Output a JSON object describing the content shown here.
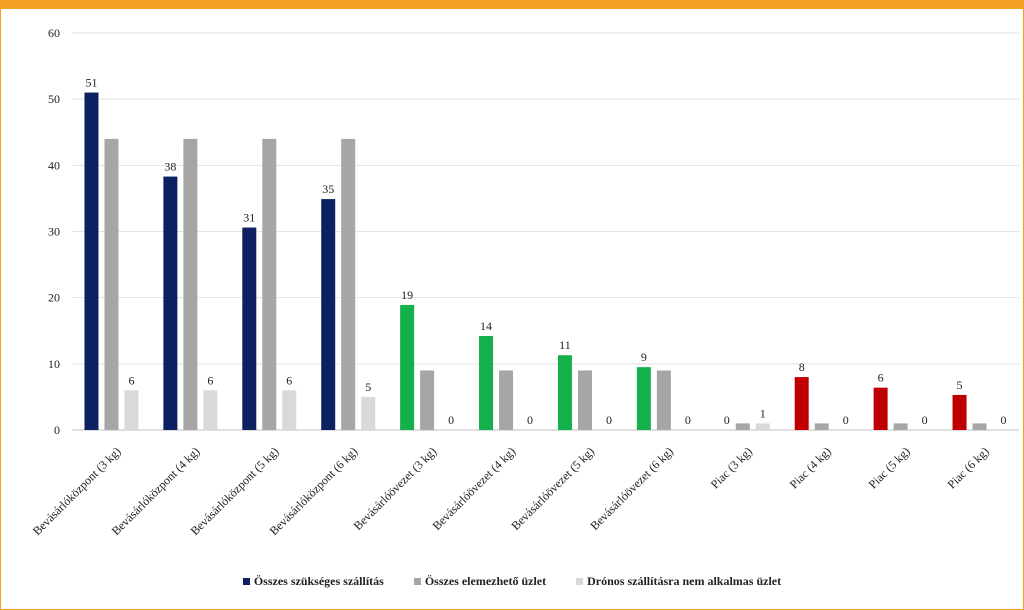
{
  "chart_data": {
    "type": "bar",
    "ylim": [
      0,
      60
    ],
    "yticks": [
      0,
      10,
      20,
      30,
      40,
      50,
      60
    ],
    "grid": true,
    "legend_position": "bottom",
    "categories": [
      "Bevásárlóközpont (3 kg)",
      "Bevásárlóközpont (4 kg)",
      "Bevásárlóközpont (5 kg)",
      "Bevásárlóközpont (6 kg)",
      "Bevásárlóövezet (3 kg)",
      "Bevásárlóövezet (4 kg)",
      "Bevásárlóövezet (5 kg)",
      "Bevásárlóövezet (6 kg)",
      "Piac (3 kg)",
      "Piac (4 kg)",
      "Piac (5 kg)",
      "Piac (6 kg)"
    ],
    "group_colors": [
      "#0d2160",
      "#0d2160",
      "#0d2160",
      "#0d2160",
      "#14b04b",
      "#14b04b",
      "#14b04b",
      "#14b04b",
      "#c00000",
      "#c00000",
      "#c00000",
      "#c00000"
    ],
    "series": [
      {
        "name": "Összes szükséges szállítás",
        "legend_color": "#0d2160",
        "values": [
          51,
          38.3,
          30.6,
          34.9,
          18.9,
          14.2,
          11.3,
          9.5,
          0,
          8,
          6.4,
          5.3
        ],
        "labels": [
          "51",
          "38",
          "31",
          "35",
          "19",
          "14",
          "11",
          "9",
          "0",
          "8",
          "6",
          "5"
        ]
      },
      {
        "name": "Összes elemezhető üzlet",
        "legend_color": "#a6a6a6",
        "values": [
          44,
          44,
          44,
          44,
          9,
          9,
          9,
          9,
          1,
          1,
          1,
          1
        ],
        "labels": []
      },
      {
        "name": "Drónos szállításra nem alkalmas üzlet",
        "legend_color": "#d9d9d9",
        "values": [
          6,
          6,
          6,
          5,
          0,
          0,
          0,
          0,
          1,
          0,
          0,
          0
        ],
        "labels": [
          "6",
          "6",
          "6",
          "5",
          "0",
          "0",
          "0",
          "0",
          "1",
          "0",
          "0",
          "0"
        ]
      }
    ]
  }
}
